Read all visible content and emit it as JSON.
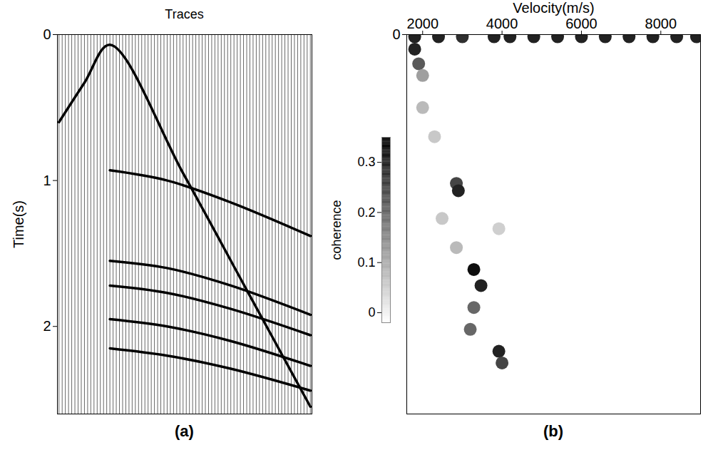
{
  "chart_data": [
    {
      "type": "line",
      "title": "Traces",
      "ylabel": "Time(s)",
      "panel_label": "(a)",
      "xlim": [
        0.5,
        80.5
      ],
      "ylim": [
        0,
        2.6
      ],
      "yticks": [
        0,
        1,
        2
      ],
      "tick_labels": "y",
      "traces": [
        1,
        2,
        3,
        4,
        5,
        6,
        7,
        8,
        9,
        10,
        11,
        12,
        13,
        14,
        15,
        16,
        17,
        18,
        19,
        20,
        21,
        22,
        23,
        24,
        25,
        26,
        27,
        28,
        29,
        30,
        31,
        32,
        33,
        34,
        35,
        36,
        37,
        38,
        39,
        40,
        41,
        42,
        43,
        44,
        45,
        46,
        47,
        48,
        49,
        50,
        51,
        52,
        53,
        54,
        55,
        56,
        57,
        58,
        59,
        60,
        61,
        62,
        63,
        64,
        65,
        66,
        67,
        68,
        69,
        70,
        71,
        72,
        73,
        74,
        75,
        76,
        77,
        78,
        79,
        80
      ],
      "series": [
        {
          "color": "#000000",
          "x": [
            1,
            9,
            17,
            40,
            60,
            80
          ],
          "values": [
            0.6,
            0.33,
            0.07,
            0.95,
            1.75,
            2.55
          ]
        },
        {
          "color": "#000000",
          "x": [
            17,
            35,
            55,
            80
          ],
          "values": [
            0.93,
            1.0,
            1.15,
            1.38
          ]
        },
        {
          "color": "#000000",
          "x": [
            17,
            35,
            55,
            80
          ],
          "values": [
            1.55,
            1.6,
            1.72,
            1.92
          ]
        },
        {
          "color": "#000000",
          "x": [
            17,
            35,
            55,
            80
          ],
          "values": [
            1.72,
            1.77,
            1.88,
            2.06
          ]
        },
        {
          "color": "#000000",
          "x": [
            17,
            35,
            55,
            80
          ],
          "values": [
            1.95,
            2.0,
            2.1,
            2.27
          ]
        },
        {
          "color": "#000000",
          "x": [
            17,
            35,
            55,
            80
          ],
          "values": [
            2.15,
            2.2,
            2.29,
            2.44
          ]
        }
      ]
    },
    {
      "type": "heatmap",
      "xlabel": "Velocity(m/s)",
      "panel_label": "(b)",
      "xlim": [
        1600,
        9000
      ],
      "xticks": [
        2000,
        4000,
        6000,
        8000
      ],
      "ylim": [
        0,
        2.6
      ],
      "yticks": [
        0
      ],
      "cells": {
        "velocity": [
          1800,
          2400,
          3000,
          3800,
          4200,
          4800,
          5400,
          6000,
          6600,
          7200,
          7800,
          8400,
          8900,
          1800,
          1900,
          2000,
          2000,
          2300,
          2490,
          2850,
          2900,
          2850,
          3920,
          3290,
          3470,
          3290,
          3200,
          3920,
          4000
        ],
        "time": [
          0.015,
          0.015,
          0.015,
          0.015,
          0.015,
          0.015,
          0.015,
          0.015,
          0.015,
          0.015,
          0.015,
          0.015,
          0.015,
          0.1,
          0.2,
          0.28,
          0.5,
          0.7,
          1.26,
          1.02,
          1.07,
          1.46,
          1.33,
          1.61,
          1.72,
          1.87,
          2.02,
          2.17,
          2.25
        ],
        "coherence": [
          0.3,
          0.3,
          0.28,
          0.3,
          0.3,
          0.3,
          0.3,
          0.3,
          0.3,
          0.3,
          0.3,
          0.3,
          0.3,
          0.3,
          0.22,
          0.12,
          0.08,
          0.06,
          0.06,
          0.25,
          0.3,
          0.08,
          0.05,
          0.33,
          0.3,
          0.2,
          0.2,
          0.3,
          0.25
        ]
      },
      "colorbar": {
        "label": "coherence",
        "range": [
          -0.02,
          0.35
        ],
        "ticks": [
          0,
          0.1,
          0.2,
          0.3
        ]
      }
    }
  ]
}
